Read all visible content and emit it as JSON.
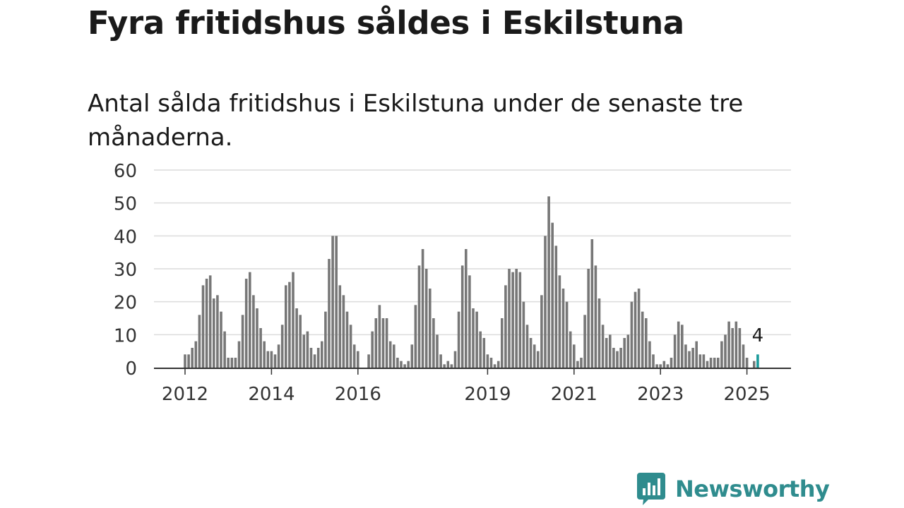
{
  "header": {
    "title": "Fyra fritidshus såldes i Eskilstuna",
    "subtitle": "Antal sålda fritidshus i Eskilstuna under de senaste tre månaderna."
  },
  "brand": {
    "name": "Newsworthy",
    "icon": "newsworthy-chart-icon",
    "color": "#2f8c8e"
  },
  "colors": {
    "bar": "#777777",
    "highlight": "#1a9a9a",
    "grid": "#dcdcdc",
    "axis": "#333333"
  },
  "chart_data": {
    "type": "bar",
    "x_start": "2012-01",
    "x_step": "month",
    "ylim": [
      0,
      60
    ],
    "yticks": [
      0,
      10,
      20,
      30,
      40,
      50,
      60
    ],
    "xtick_labels": [
      {
        "label": "2012",
        "index": 0
      },
      {
        "label": "2014",
        "index": 24
      },
      {
        "label": "2016",
        "index": 48
      },
      {
        "label": "2019",
        "index": 84
      },
      {
        "label": "2021",
        "index": 108
      },
      {
        "label": "2023",
        "index": 132
      },
      {
        "label": "2025",
        "index": 156
      }
    ],
    "values": [
      4,
      4,
      6,
      8,
      16,
      25,
      27,
      28,
      21,
      22,
      17,
      11,
      3,
      3,
      3,
      8,
      16,
      27,
      29,
      22,
      18,
      12,
      8,
      5,
      5,
      4,
      7,
      13,
      25,
      26,
      29,
      18,
      16,
      10,
      11,
      6,
      4,
      6,
      8,
      17,
      33,
      40,
      40,
      25,
      22,
      17,
      13,
      7,
      5,
      0,
      0,
      4,
      11,
      15,
      19,
      15,
      15,
      8,
      7,
      3,
      2,
      1,
      2,
      7,
      19,
      31,
      36,
      30,
      24,
      15,
      10,
      4,
      1,
      2,
      1,
      5,
      17,
      31,
      36,
      28,
      18,
      17,
      11,
      9,
      4,
      3,
      1,
      2,
      15,
      25,
      30,
      29,
      30,
      29,
      20,
      13,
      9,
      7,
      5,
      22,
      40,
      52,
      44,
      37,
      28,
      24,
      20,
      11,
      7,
      2,
      3,
      16,
      30,
      39,
      31,
      21,
      13,
      9,
      10,
      6,
      5,
      6,
      9,
      10,
      20,
      23,
      24,
      17,
      15,
      8,
      4,
      1,
      1,
      2,
      1,
      3,
      10,
      14,
      13,
      7,
      5,
      6,
      8,
      4,
      4,
      2,
      3,
      3,
      3,
      8,
      10,
      14,
      12,
      14,
      12,
      7,
      3,
      0,
      2,
      4
    ],
    "highlight_last": true,
    "last_label": "4"
  }
}
